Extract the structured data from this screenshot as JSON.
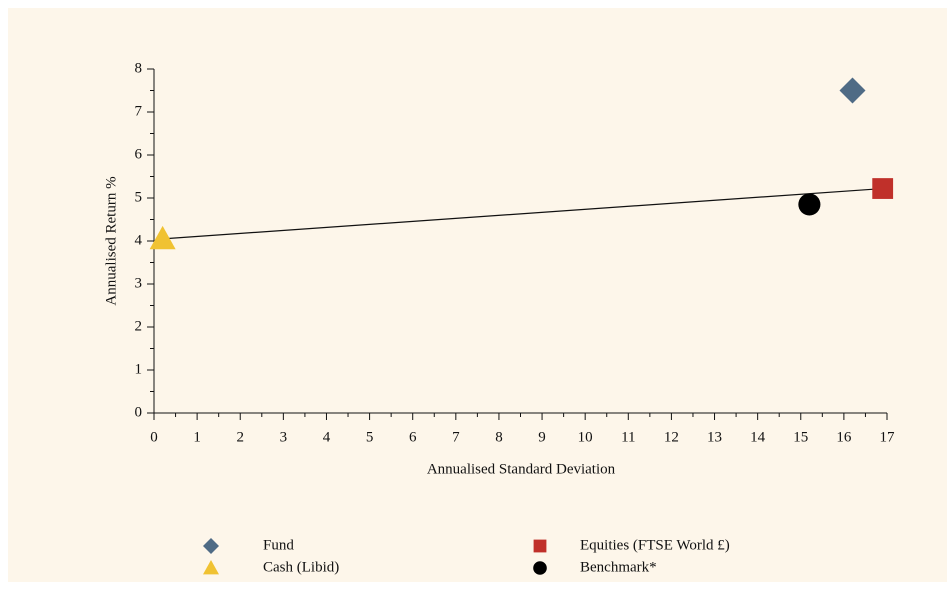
{
  "chart_data": {
    "type": "scatter",
    "xlabel": "Annualised Standard Deviation",
    "ylabel": "Annualised Return %",
    "xlim": [
      0,
      17
    ],
    "ylim": [
      0,
      8
    ],
    "xticks": [
      0,
      1,
      2,
      3,
      4,
      5,
      6,
      7,
      8,
      9,
      10,
      11,
      12,
      13,
      14,
      15,
      16,
      17
    ],
    "yticks": [
      0,
      1,
      2,
      3,
      4,
      5,
      6,
      7,
      8
    ],
    "series": [
      {
        "name": "Fund",
        "color": "#4f6b85",
        "marker": "diamond",
        "x": [
          16.2
        ],
        "values": [
          7.5
        ]
      },
      {
        "name": "Cash (Libid)",
        "color": "#f0c232",
        "marker": "triangle",
        "x": [
          0.2
        ],
        "values": [
          4.05
        ]
      },
      {
        "name": "Equities (FTSE World £)",
        "color": "#c0302a",
        "marker": "square",
        "x": [
          16.9
        ],
        "values": [
          5.22
        ]
      },
      {
        "name": "Benchmark*",
        "color": "#000000",
        "marker": "circle",
        "x": [
          15.2
        ],
        "values": [
          4.85
        ]
      }
    ]
  }
}
